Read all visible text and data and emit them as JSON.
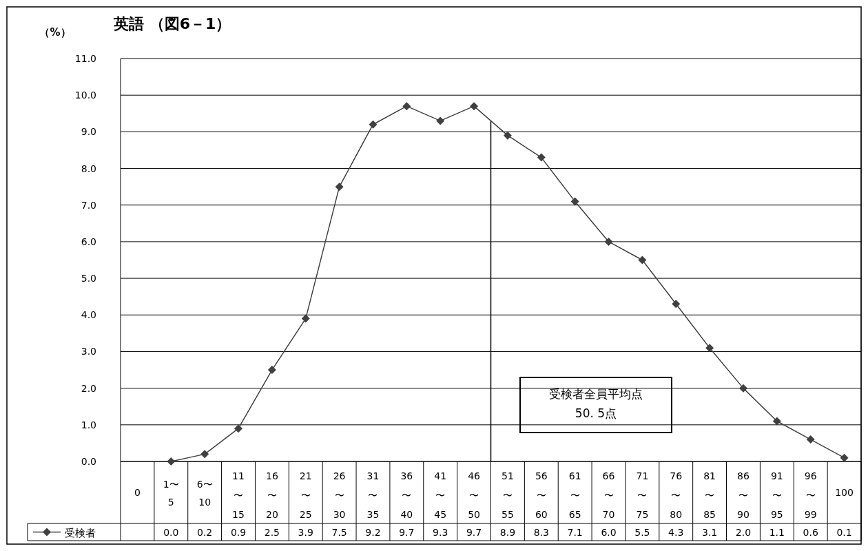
{
  "chart_data": {
    "type": "line",
    "title": "英語 （図6－1）",
    "ylabel": "（%）",
    "categories": [
      "0",
      "1〜5",
      "6〜10",
      "11〜15",
      "16〜20",
      "21〜25",
      "26〜30",
      "31〜35",
      "36〜40",
      "41〜45",
      "46〜50",
      "51〜55",
      "56〜60",
      "61〜65",
      "66〜70",
      "71〜75",
      "76〜80",
      "81〜85",
      "86〜90",
      "91〜95",
      "96〜99",
      "100"
    ],
    "series": [
      {
        "name": "受検者",
        "color": "#404040",
        "values": [
          null,
          0.0,
          0.2,
          0.9,
          2.5,
          3.9,
          7.5,
          9.2,
          9.7,
          9.3,
          9.7,
          8.9,
          8.3,
          7.1,
          6.0,
          5.5,
          4.3,
          3.1,
          2.0,
          1.1,
          0.6,
          0.1
        ],
        "value_labels": [
          null,
          "0.0",
          "0.2",
          "0.9",
          "2.5",
          "3.9",
          "7.5",
          "9.2",
          "9.7",
          "9.3",
          "9.7",
          "8.9",
          "8.3",
          "7.1",
          "6.0",
          "5.5",
          "4.3",
          "3.1",
          "2.0",
          "1.1",
          "0.6",
          "0.1"
        ]
      }
    ],
    "ylim": [
      0,
      11
    ],
    "yticks": [
      {
        "value": 0,
        "label": "0.0"
      },
      {
        "value": 1,
        "label": "1.0"
      },
      {
        "value": 2,
        "label": "2.0"
      },
      {
        "value": 3,
        "label": "3.0"
      },
      {
        "value": 4,
        "label": "4.0"
      },
      {
        "value": 5,
        "label": "5.0"
      },
      {
        "value": 6,
        "label": "6.0"
      },
      {
        "value": 7,
        "label": "7.0"
      },
      {
        "value": 8,
        "label": "8.0"
      },
      {
        "value": 9,
        "label": "9.0"
      },
      {
        "value": 10,
        "label": "10.0"
      },
      {
        "value": 11,
        "label": "11.0"
      }
    ],
    "ref_lines": [
      {
        "axis": "x",
        "value": "46〜50",
        "label": "受検者全員平均点\n50. 5点",
        "color": "#000000"
      }
    ],
    "grid": "y",
    "marker": "diamond",
    "line_style": "solid",
    "legend": "bottom left"
  }
}
